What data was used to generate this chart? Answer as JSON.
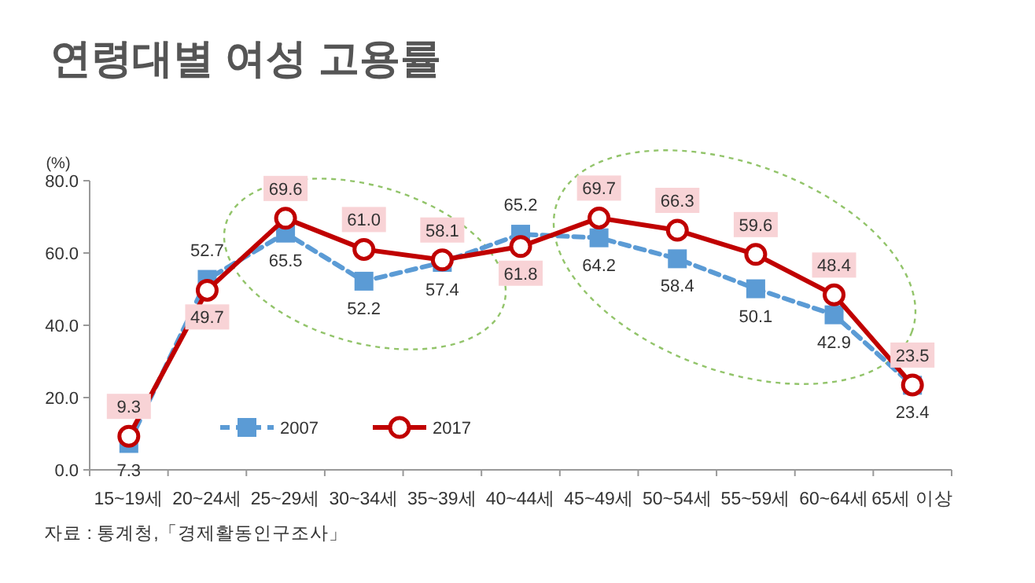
{
  "chart_data": {
    "type": "line",
    "title": "연령대별 여성 고용률",
    "ylabel": "(%)",
    "categories": [
      "15~19세",
      "20~24세",
      "25~29세",
      "30~34세",
      "35~39세",
      "40~44세",
      "45~49세",
      "50~54세",
      "55~59세",
      "60~64세",
      "65세 이상"
    ],
    "series": [
      {
        "name": "2007",
        "color": "#5b9bd5",
        "values": [
          7.3,
          52.7,
          65.5,
          52.2,
          57.4,
          65.2,
          64.2,
          58.4,
          50.1,
          42.9,
          23.4
        ],
        "marker": "square",
        "line_style": "dashed",
        "value_labels": [
          "7.3",
          "52.7",
          "65.5",
          "52.2",
          "57.4",
          "65.2",
          "64.2",
          "58.4",
          "50.1",
          "42.9",
          "23.4"
        ]
      },
      {
        "name": "2017",
        "color": "#c00000",
        "values": [
          9.3,
          49.7,
          69.6,
          61.0,
          58.1,
          61.8,
          69.7,
          66.3,
          59.6,
          48.4,
          23.5
        ],
        "marker": "circle",
        "line_style": "solid",
        "value_labels": [
          "9.3",
          "49.7",
          "69.6",
          "61.0",
          "58.1",
          "61.8",
          "69.7",
          "66.3",
          "59.6",
          "48.4",
          "23.5"
        ]
      }
    ],
    "ylim": [
      0,
      80
    ],
    "yticks": [
      {
        "value": 0,
        "label": "0.0"
      },
      {
        "value": 20,
        "label": "20.0"
      },
      {
        "value": 40,
        "label": "40.0"
      },
      {
        "value": 60,
        "label": "60.0"
      },
      {
        "value": 80,
        "label": "80.0"
      }
    ],
    "grid": false,
    "legend": "bottom left",
    "annotations": [
      "자료 : 통계청,「경제활동인구조사」"
    ]
  }
}
